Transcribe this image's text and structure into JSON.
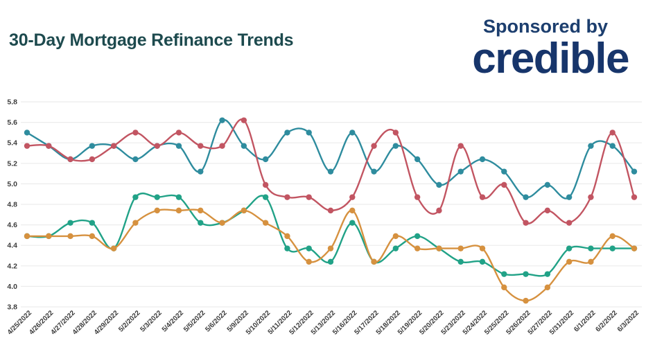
{
  "header": {
    "title": "30-Day Mortgage Refinance Trends",
    "sponsored_by": "Sponsored by",
    "sponsor_name": "credible"
  },
  "colors": {
    "title_text": "#1d4a4e",
    "sponsor_text": "#1c3e6e",
    "background": "#ffffff",
    "gridline": "#ececec",
    "axis_text": "#3d3d3d",
    "teal": "#2e8c9e",
    "red": "#c25562",
    "green": "#21a287",
    "orange": "#d6913f"
  },
  "chart_data": {
    "type": "line",
    "title": "30-Day Mortgage Refinance Trends",
    "xlabel": "",
    "ylabel": "",
    "ylim": [
      3.8,
      5.8
    ],
    "y_ticks": [
      "5.8",
      "5.6",
      "5.4",
      "5.2",
      "5.0",
      "4.8",
      "4.6",
      "4.4",
      "4.2",
      "4.0",
      "3.8"
    ],
    "grid": true,
    "legend_position": "none",
    "point_markers": true,
    "x": [
      "4/25/2022",
      "4/26/2022",
      "4/27/2022",
      "4/28/2022",
      "4/29/2022",
      "5/2/2022",
      "5/3/2022",
      "5/4/2022",
      "5/5/2022",
      "5/6/2022",
      "5/9/2022",
      "5/10/2022",
      "5/11/2022",
      "5/12/2022",
      "5/13/2022",
      "5/16/2022",
      "5/17/2022",
      "5/18/2022",
      "5/19/2022",
      "5/20/2022",
      "5/23/2022",
      "5/24/2022",
      "5/25/2022",
      "5/26/2022",
      "5/27/2022",
      "5/31/2022",
      "6/1/2022",
      "6/2/2022",
      "6/3/2022"
    ],
    "series": [
      {
        "name": "Teal",
        "color_key": "teal",
        "values": [
          5.5,
          5.37,
          5.24,
          5.37,
          5.37,
          5.24,
          5.37,
          5.37,
          5.12,
          5.62,
          5.37,
          5.24,
          5.5,
          5.5,
          5.12,
          5.5,
          5.12,
          5.37,
          5.24,
          4.99,
          5.12,
          5.24,
          5.12,
          4.87,
          4.99,
          4.87,
          5.37,
          5.37,
          5.12
        ]
      },
      {
        "name": "Green",
        "color_key": "green",
        "values": [
          4.49,
          4.49,
          4.62,
          4.62,
          4.37,
          4.87,
          4.87,
          4.87,
          4.62,
          4.62,
          4.74,
          4.87,
          4.37,
          4.37,
          4.24,
          4.62,
          4.24,
          4.37,
          4.49,
          4.37,
          4.24,
          4.24,
          4.12,
          4.12,
          4.12,
          4.37,
          4.37,
          4.37,
          4.37
        ]
      },
      {
        "name": "Orange",
        "color_key": "orange",
        "values": [
          4.49,
          4.49,
          4.49,
          4.49,
          4.37,
          4.62,
          4.74,
          4.74,
          4.74,
          4.62,
          4.74,
          4.62,
          4.49,
          4.24,
          4.37,
          4.74,
          4.24,
          4.49,
          4.37,
          4.37,
          4.37,
          4.37,
          3.99,
          3.86,
          3.99,
          4.24,
          4.24,
          4.49,
          4.37
        ]
      },
      {
        "name": "Red",
        "color_key": "red",
        "values": [
          5.37,
          5.37,
          5.24,
          5.24,
          5.37,
          5.5,
          5.37,
          5.5,
          5.37,
          5.37,
          5.62,
          4.99,
          4.87,
          4.87,
          4.74,
          4.87,
          5.37,
          5.5,
          4.87,
          4.74,
          5.37,
          4.87,
          4.99,
          4.62,
          4.74,
          4.62,
          4.87,
          5.5,
          4.87
        ]
      }
    ]
  }
}
